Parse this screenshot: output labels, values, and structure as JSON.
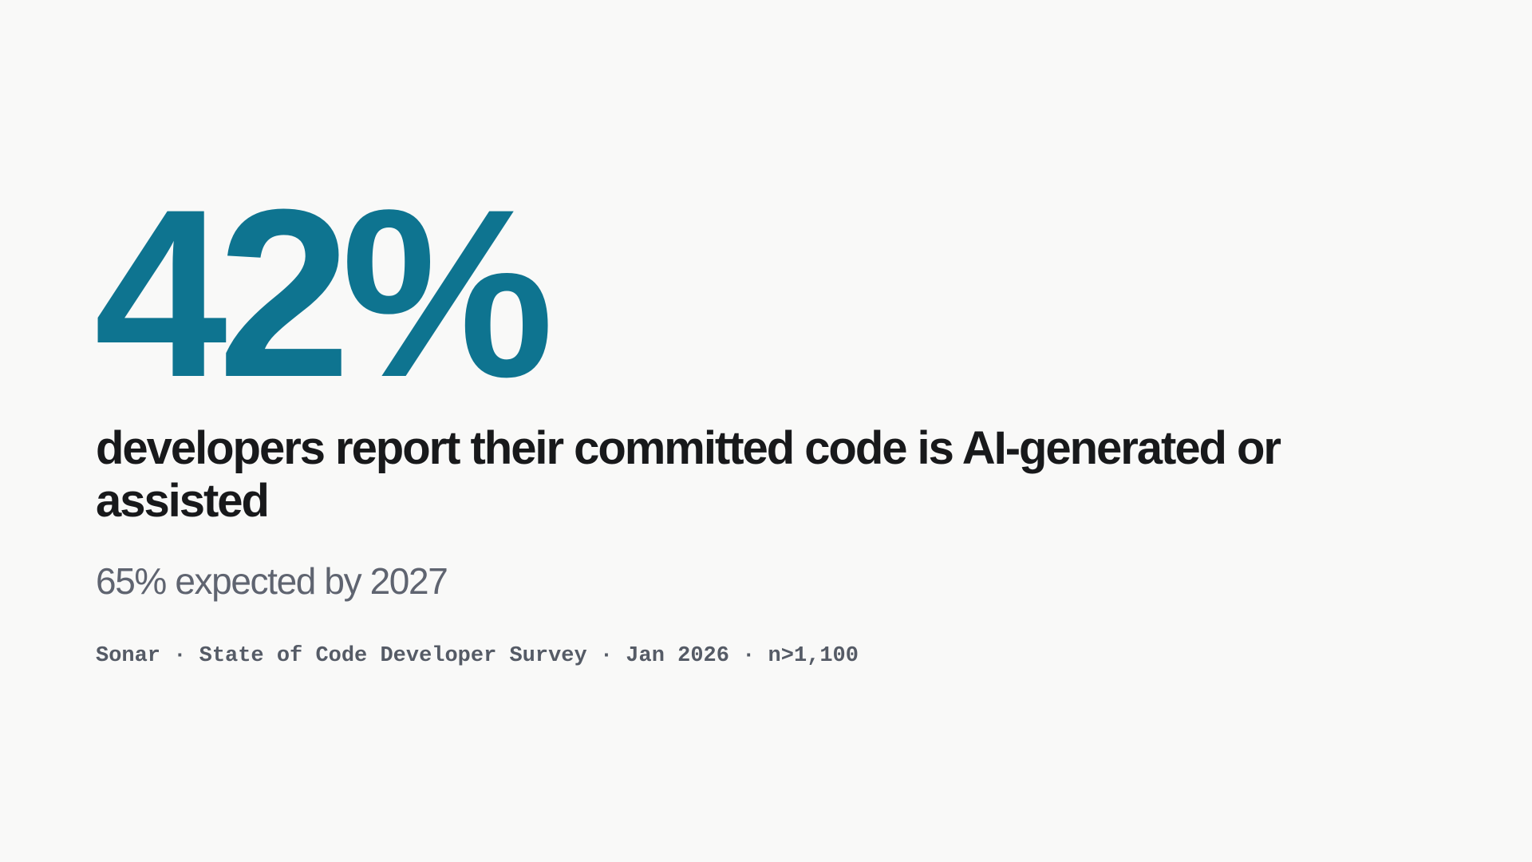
{
  "stat": "42%",
  "description": "developers report their committed code is AI-generated or assisted",
  "subtitle": "65% expected by 2027",
  "source": "Sonar · State of Code Developer Survey · Jan 2026 · n>1,100"
}
